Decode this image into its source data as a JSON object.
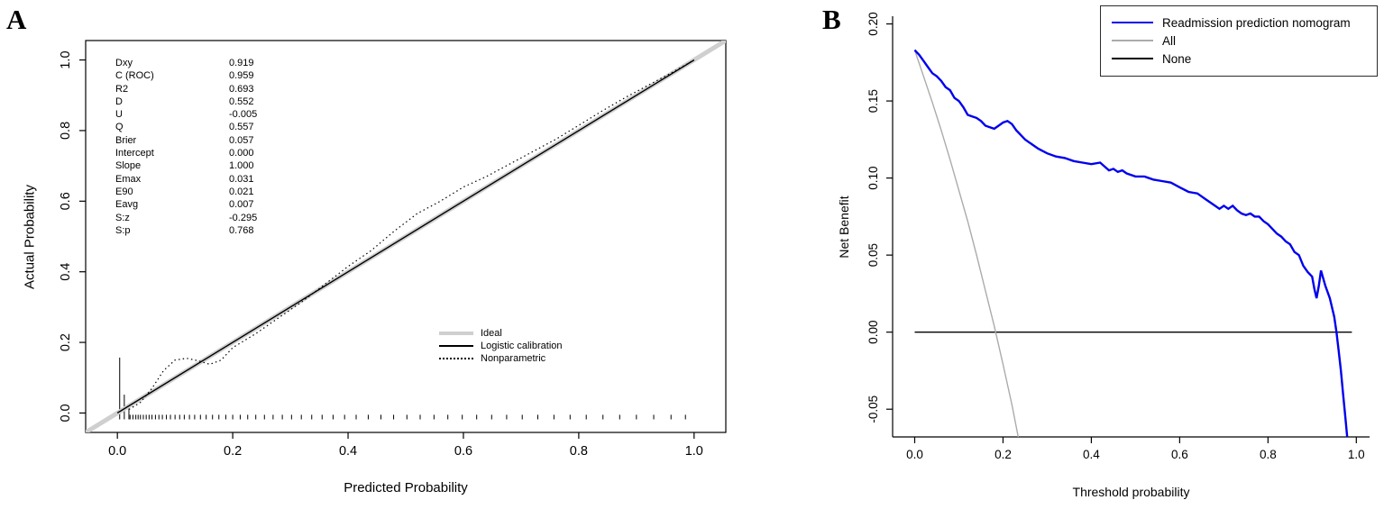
{
  "panels": [
    {
      "label": "A"
    },
    {
      "label": "B"
    }
  ],
  "chart_data": [
    {
      "type": "line",
      "panel": "A",
      "title": "",
      "xlabel": "Predicted Probability",
      "ylabel": "Actual Probability",
      "xlim": [
        -0.055,
        1.055
      ],
      "ylim": [
        -0.055,
        1.055
      ],
      "frame": "box",
      "grid": false,
      "xticks": [
        0.0,
        0.2,
        0.4,
        0.6,
        0.8,
        1.0
      ],
      "xtick_labels": [
        "0.0",
        "0.2",
        "0.4",
        "0.6",
        "0.8",
        "1.0"
      ],
      "yticks": [
        0.0,
        0.2,
        0.4,
        0.6,
        0.8,
        1.0
      ],
      "ytick_labels": [
        "0.0",
        "0.2",
        "0.4",
        "0.6",
        "0.8",
        "1.0"
      ],
      "stats": [
        {
          "name": "Dxy",
          "value": "0.919"
        },
        {
          "name": "C (ROC)",
          "value": "0.959"
        },
        {
          "name": "R2",
          "value": "0.693"
        },
        {
          "name": "D",
          "value": "0.552"
        },
        {
          "name": "U",
          "value": "-0.005"
        },
        {
          "name": "Q",
          "value": "0.557"
        },
        {
          "name": "Brier",
          "value": "0.057"
        },
        {
          "name": "Intercept",
          "value": "0.000"
        },
        {
          "name": "Slope",
          "value": "1.000"
        },
        {
          "name": "Emax",
          "value": "0.031"
        },
        {
          "name": "E90",
          "value": "0.021"
        },
        {
          "name": "Eavg",
          "value": "0.007"
        },
        {
          "name": "S:z",
          "value": "-0.295"
        },
        {
          "name": "S:p",
          "value": "0.768"
        }
      ],
      "legend": {
        "position": "inside-lower-right",
        "entries": [
          {
            "label": "Ideal",
            "color": "#CFCFCF",
            "width": 4
          },
          {
            "label": "Logistic calibration",
            "color": "#000000",
            "width": 1.5
          },
          {
            "label": "Nonparametric",
            "color": "#000000",
            "width": 1.5,
            "dash": "dotted"
          }
        ]
      },
      "series": [
        {
          "name": "Ideal",
          "color": "#CFCFCF",
          "width": 5,
          "x": [
            -0.055,
            1.055
          ],
          "y": [
            -0.055,
            1.055
          ]
        },
        {
          "name": "Logistic calibration",
          "color": "#000000",
          "width": 1.4,
          "x": [
            0,
            1
          ],
          "y": [
            0,
            1
          ]
        },
        {
          "name": "Nonparametric",
          "color": "#000000",
          "width": 1.2,
          "dash": "1.5 3.2",
          "x": [
            0.02,
            0.04,
            0.06,
            0.08,
            0.1,
            0.12,
            0.14,
            0.16,
            0.18,
            0.2,
            0.24,
            0.28,
            0.32,
            0.36,
            0.4,
            0.44,
            0.48,
            0.52,
            0.56,
            0.6,
            0.64,
            0.68,
            0.72,
            0.76,
            0.8,
            0.84,
            0.88,
            0.92,
            0.96,
            1.0
          ],
          "y": [
            0.01,
            0.03,
            0.07,
            0.12,
            0.15,
            0.155,
            0.148,
            0.138,
            0.15,
            0.185,
            0.225,
            0.27,
            0.315,
            0.365,
            0.415,
            0.46,
            0.515,
            0.565,
            0.6,
            0.64,
            0.67,
            0.705,
            0.74,
            0.775,
            0.815,
            0.855,
            0.893,
            0.928,
            0.963,
            1.0
          ]
        }
      ],
      "rug": {
        "baseline": -0.018,
        "tick_height": 0.013,
        "ticks": [
          0.022,
          0.027,
          0.032,
          0.036,
          0.04,
          0.045,
          0.05,
          0.055,
          0.06,
          0.066,
          0.072,
          0.078,
          0.085,
          0.092,
          0.1,
          0.108,
          0.116,
          0.125,
          0.134,
          0.144,
          0.154,
          0.165,
          0.176,
          0.188,
          0.2,
          0.213,
          0.226,
          0.24,
          0.255,
          0.27,
          0.286,
          0.302,
          0.319,
          0.337,
          0.355,
          0.374,
          0.394,
          0.414,
          0.435,
          0.457,
          0.479,
          0.502,
          0.525,
          0.549,
          0.573,
          0.598,
          0.623,
          0.649,
          0.675,
          0.702,
          0.729,
          0.757,
          0.785,
          0.813,
          0.842,
          0.871,
          0.9,
          0.93,
          0.96,
          0.985
        ],
        "spikes": [
          {
            "x": 0.004,
            "h": 0.175
          },
          {
            "x": 0.012,
            "h": 0.07
          },
          {
            "x": 0.02,
            "h": 0.045
          }
        ]
      }
    },
    {
      "type": "line",
      "panel": "B",
      "title": "",
      "xlabel": "Threshold probability",
      "ylabel": "Net Benefit",
      "xlim": [
        -0.05,
        1.03
      ],
      "ylim": [
        -0.068,
        0.205
      ],
      "frame": "axes",
      "grid": false,
      "xticks": [
        0.0,
        0.2,
        0.4,
        0.6,
        0.8,
        1.0
      ],
      "xtick_labels": [
        "0.0",
        "0.2",
        "0.4",
        "0.6",
        "0.8",
        "1.0"
      ],
      "yticks": [
        -0.05,
        0.0,
        0.05,
        0.1,
        0.15,
        0.2
      ],
      "ytick_labels": [
        "-0.05",
        "0.00",
        "0.05",
        "0.10",
        "0.15",
        "0.20"
      ],
      "legend": {
        "position": "top-right",
        "entries": [
          {
            "label": "Readmission prediction nomogram",
            "color": "#0000EE",
            "width": 2.5
          },
          {
            "label": "All",
            "color": "#ABABAB",
            "width": 1.5
          },
          {
            "label": "None",
            "color": "#000000",
            "width": 1.5
          }
        ]
      },
      "series": [
        {
          "name": "None",
          "color": "#000000",
          "width": 1.3,
          "x": [
            0,
            0.99
          ],
          "y": [
            0,
            0
          ]
        },
        {
          "name": "All",
          "color": "#ABABAB",
          "width": 1.4,
          "x": [
            0,
            0.02,
            0.04,
            0.06,
            0.08,
            0.1,
            0.12,
            0.14,
            0.16,
            0.18,
            0.2,
            0.22,
            0.24
          ],
          "y": [
            0.183,
            0.166,
            0.149,
            0.131,
            0.112,
            0.092,
            0.072,
            0.05,
            0.027,
            0.004,
            -0.021,
            -0.047,
            -0.076
          ]
        },
        {
          "name": "Readmission prediction nomogram",
          "color": "#0000EE",
          "width": 2.4,
          "x": [
            0,
            0.01,
            0.02,
            0.03,
            0.04,
            0.05,
            0.06,
            0.07,
            0.08,
            0.09,
            0.1,
            0.11,
            0.12,
            0.13,
            0.14,
            0.15,
            0.16,
            0.17,
            0.18,
            0.19,
            0.2,
            0.21,
            0.22,
            0.23,
            0.24,
            0.25,
            0.26,
            0.28,
            0.3,
            0.32,
            0.34,
            0.36,
            0.38,
            0.4,
            0.42,
            0.44,
            0.45,
            0.46,
            0.47,
            0.48,
            0.5,
            0.52,
            0.54,
            0.56,
            0.58,
            0.6,
            0.62,
            0.64,
            0.66,
            0.68,
            0.69,
            0.7,
            0.71,
            0.72,
            0.73,
            0.74,
            0.75,
            0.76,
            0.77,
            0.78,
            0.79,
            0.8,
            0.81,
            0.82,
            0.83,
            0.84,
            0.85,
            0.86,
            0.87,
            0.88,
            0.89,
            0.9,
            0.905,
            0.91,
            0.915,
            0.92,
            0.93,
            0.94,
            0.95,
            0.955,
            0.96,
            0.965,
            0.97,
            0.975,
            0.98
          ],
          "y": [
            0.183,
            0.18,
            0.176,
            0.172,
            0.168,
            0.166,
            0.163,
            0.159,
            0.157,
            0.152,
            0.15,
            0.146,
            0.141,
            0.14,
            0.139,
            0.137,
            0.134,
            0.133,
            0.132,
            0.134,
            0.136,
            0.137,
            0.135,
            0.131,
            0.128,
            0.125,
            0.123,
            0.119,
            0.116,
            0.114,
            0.113,
            0.111,
            0.11,
            0.109,
            0.11,
            0.105,
            0.106,
            0.104,
            0.105,
            0.103,
            0.101,
            0.101,
            0.099,
            0.098,
            0.097,
            0.094,
            0.091,
            0.09,
            0.086,
            0.082,
            0.08,
            0.082,
            0.08,
            0.082,
            0.079,
            0.077,
            0.076,
            0.077,
            0.075,
            0.075,
            0.072,
            0.07,
            0.067,
            0.064,
            0.062,
            0.059,
            0.057,
            0.052,
            0.05,
            0.043,
            0.039,
            0.036,
            0.028,
            0.022,
            0.03,
            0.04,
            0.03,
            0.022,
            0.01,
            0.0,
            -0.012,
            -0.025,
            -0.04,
            -0.055,
            -0.07
          ]
        }
      ]
    }
  ]
}
